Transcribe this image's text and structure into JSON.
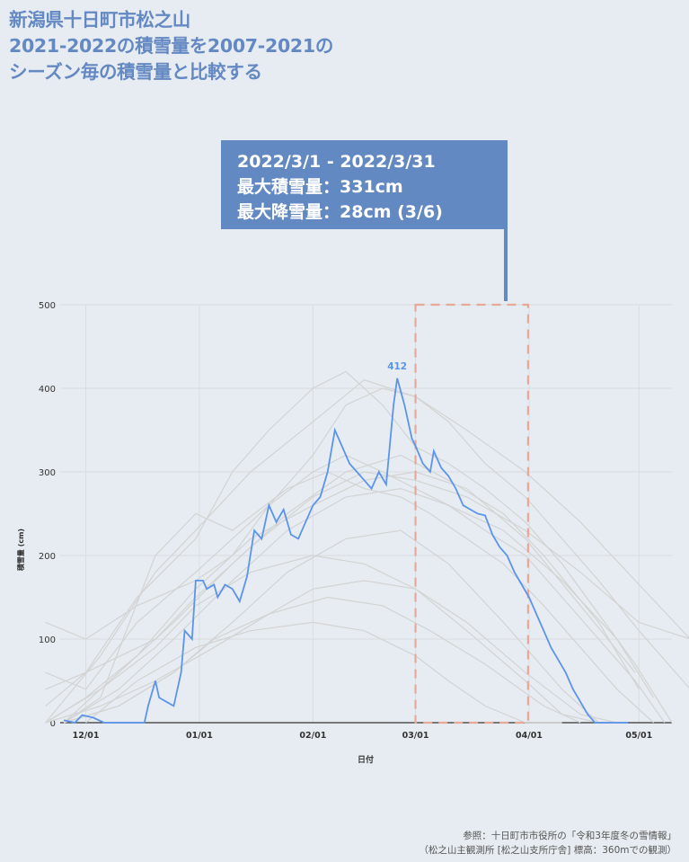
{
  "title_lines": [
    "新潟県十日町市松之山",
    "2021-2022の積雪量を2007-2021の",
    "シーズン毎の積雪量と比較する"
  ],
  "callout": {
    "period": "2022/3/1 - 2022/3/31",
    "max_depth": "最大積雪量：331cm",
    "max_snowfall": "最大降雪量：28cm (3/6)"
  },
  "source": {
    "line1": "参照：十日町市市役所の「令和3年度冬の雪情報」",
    "line2": "（松之山主観測所 [松之山支所庁舎] 標高：360mでの観測）"
  },
  "colors": {
    "current": "#5b94ea",
    "past": "#d3d3d3",
    "highlight": "#e8a898",
    "title": "#6388c2",
    "callout": "#6389c2"
  },
  "chart_data": {
    "type": "line",
    "xlabel": "日付",
    "ylabel": "積雪量 (cm)",
    "ylim": [
      0,
      500
    ],
    "yticks": [
      "0",
      "100",
      "200",
      "300",
      "400",
      "500"
    ],
    "xticks": [
      "12/01",
      "01/01",
      "02/01",
      "03/01",
      "04/01",
      "05/01"
    ],
    "grid": true,
    "highlight_period": [
      "03/01",
      "03/31"
    ],
    "peak_label": "412",
    "current_season": {
      "name": "2021-2022",
      "x": [
        "11/25",
        "11/28",
        "11/30",
        "12/03",
        "12/06",
        "12/09",
        "12/12",
        "12/15",
        "12/17",
        "12/18",
        "12/20",
        "12/21",
        "12/23",
        "12/25",
        "12/27",
        "12/28",
        "12/30",
        "12/31",
        "01/02",
        "01/03",
        "01/05",
        "01/06",
        "01/08",
        "01/10",
        "01/12",
        "01/14",
        "01/16",
        "01/18",
        "01/20",
        "01/22",
        "01/24",
        "01/26",
        "01/28",
        "01/30",
        "02/01",
        "02/03",
        "02/05",
        "02/07",
        "02/09",
        "02/11",
        "02/13",
        "02/15",
        "02/17",
        "02/19",
        "02/21",
        "02/23",
        "02/24",
        "02/26",
        "02/28",
        "03/01",
        "03/03",
        "03/05",
        "03/06",
        "03/08",
        "03/10",
        "03/12",
        "03/14",
        "03/16",
        "03/18",
        "03/20",
        "03/22",
        "03/24",
        "03/26",
        "03/28",
        "03/30",
        "04/01",
        "04/03",
        "04/05",
        "04/07",
        "04/09",
        "04/11",
        "04/13",
        "04/15",
        "04/17",
        "04/19",
        "04/21",
        "04/23",
        "04/25",
        "04/27",
        "04/28"
      ],
      "y": [
        3,
        0,
        9,
        6,
        0,
        0,
        0,
        0,
        0,
        20,
        50,
        30,
        25,
        20,
        60,
        110,
        100,
        170,
        170,
        160,
        165,
        150,
        165,
        160,
        145,
        175,
        230,
        220,
        260,
        240,
        255,
        225,
        220,
        240,
        260,
        270,
        300,
        350,
        330,
        310,
        300,
        290,
        280,
        300,
        285,
        380,
        412,
        380,
        340,
        331,
        310,
        300,
        325,
        305,
        295,
        280,
        260,
        255,
        250,
        248,
        225,
        210,
        200,
        180,
        165,
        150,
        130,
        110,
        90,
        75,
        60,
        40,
        25,
        10,
        0,
        0,
        0,
        0,
        0,
        0
      ]
    },
    "past_seasons": [
      {
        "x": [
          "11/20",
          "12/01",
          "12/15",
          "12/31",
          "01/10",
          "01/20",
          "02/01",
          "02/10",
          "02/20",
          "03/01",
          "03/10",
          "03/20",
          "03/31",
          "04/10",
          "04/20",
          "04/30",
          "05/08"
        ],
        "y": [
          60,
          40,
          120,
          180,
          220,
          260,
          300,
          320,
          300,
          280,
          260,
          230,
          200,
          150,
          100,
          50,
          0
        ]
      },
      {
        "x": [
          "11/20",
          "12/01",
          "12/15",
          "12/31",
          "01/10",
          "01/20",
          "02/01",
          "02/10",
          "02/20",
          "03/01",
          "03/10",
          "03/20",
          "03/31",
          "04/10",
          "04/20",
          "04/30",
          "05/10"
        ],
        "y": [
          20,
          60,
          150,
          220,
          300,
          350,
          400,
          420,
          380,
          330,
          310,
          280,
          240,
          190,
          130,
          70,
          0
        ]
      },
      {
        "x": [
          "11/25",
          "12/05",
          "12/20",
          "12/31",
          "01/10",
          "01/25",
          "02/05",
          "02/15",
          "02/25",
          "03/05",
          "03/15",
          "03/25",
          "04/05",
          "04/15",
          "04/25",
          "05/05"
        ],
        "y": [
          0,
          30,
          200,
          250,
          230,
          280,
          300,
          280,
          270,
          250,
          220,
          190,
          140,
          90,
          40,
          0
        ]
      },
      {
        "x": [
          "11/20",
          "12/01",
          "12/15",
          "12/31",
          "01/10",
          "01/20",
          "02/01",
          "02/10",
          "02/20",
          "03/01",
          "03/10",
          "03/20",
          "03/31",
          "04/10",
          "04/20",
          "05/01",
          "05/15"
        ],
        "y": [
          120,
          100,
          140,
          170,
          200,
          260,
          320,
          380,
          400,
          390,
          360,
          310,
          270,
          220,
          170,
          110,
          40
        ]
      },
      {
        "x": [
          "11/25",
          "12/10",
          "12/25",
          "01/05",
          "01/20",
          "02/01",
          "02/15",
          "03/01",
          "03/15",
          "03/31",
          "04/15",
          "04/25"
        ],
        "y": [
          0,
          20,
          60,
          100,
          130,
          160,
          170,
          160,
          120,
          60,
          10,
          0
        ]
      },
      {
        "x": [
          "11/20",
          "12/05",
          "12/20",
          "12/31",
          "01/15",
          "02/01",
          "02/15",
          "03/01",
          "03/15",
          "03/31",
          "04/15",
          "04/30",
          "05/15"
        ],
        "y": [
          0,
          80,
          180,
          230,
          300,
          360,
          410,
          390,
          350,
          300,
          240,
          170,
          100
        ]
      },
      {
        "x": [
          "11/20",
          "12/05",
          "12/20",
          "12/31",
          "01/15",
          "02/01",
          "02/15",
          "03/01",
          "03/15",
          "03/31",
          "04/10",
          "04/20"
        ],
        "y": [
          0,
          40,
          90,
          140,
          180,
          200,
          190,
          160,
          110,
          50,
          10,
          0
        ]
      },
      {
        "x": [
          "11/25",
          "12/10",
          "12/25",
          "01/10",
          "01/25",
          "02/10",
          "02/25",
          "03/10",
          "03/25",
          "04/05",
          "04/20",
          "05/01"
        ],
        "y": [
          0,
          60,
          120,
          190,
          250,
          300,
          320,
          290,
          250,
          200,
          120,
          40
        ]
      },
      {
        "x": [
          "11/20",
          "12/01",
          "12/20",
          "12/31",
          "01/15",
          "02/01",
          "02/15",
          "03/01",
          "03/15",
          "03/31",
          "04/15",
          "05/01",
          "05/15"
        ],
        "y": [
          40,
          60,
          100,
          150,
          210,
          270,
          300,
          290,
          270,
          230,
          180,
          120,
          100
        ]
      },
      {
        "x": [
          "12/01",
          "12/15",
          "12/31",
          "01/15",
          "02/01",
          "02/15",
          "03/01",
          "03/10",
          "03/20",
          "03/31",
          "04/10"
        ],
        "y": [
          0,
          50,
          90,
          110,
          120,
          110,
          80,
          50,
          20,
          0,
          0
        ]
      },
      {
        "x": [
          "11/25",
          "12/10",
          "12/25",
          "01/10",
          "01/25",
          "02/10",
          "02/25",
          "03/10",
          "03/25",
          "04/10",
          "04/25",
          "05/05"
        ],
        "y": [
          0,
          40,
          100,
          170,
          230,
          270,
          280,
          260,
          230,
          170,
          100,
          30
        ]
      },
      {
        "x": [
          "11/20",
          "12/05",
          "12/20",
          "01/05",
          "01/20",
          "02/05",
          "02/20",
          "03/05",
          "03/20",
          "04/05",
          "04/15"
        ],
        "y": [
          0,
          20,
          50,
          90,
          130,
          150,
          140,
          110,
          70,
          20,
          0
        ]
      },
      {
        "x": [
          "11/20",
          "12/01",
          "12/15",
          "12/31",
          "01/15",
          "02/01",
          "02/15",
          "03/01",
          "03/15",
          "03/31",
          "04/15",
          "04/30"
        ],
        "y": [
          0,
          30,
          80,
          160,
          220,
          260,
          290,
          300,
          280,
          220,
          140,
          60
        ]
      },
      {
        "x": [
          "11/25",
          "12/10",
          "12/25",
          "01/10",
          "01/25",
          "02/10",
          "02/25",
          "03/10",
          "03/25",
          "04/10",
          "04/20"
        ],
        "y": [
          0,
          20,
          60,
          120,
          180,
          220,
          230,
          190,
          120,
          40,
          0
        ]
      }
    ]
  }
}
